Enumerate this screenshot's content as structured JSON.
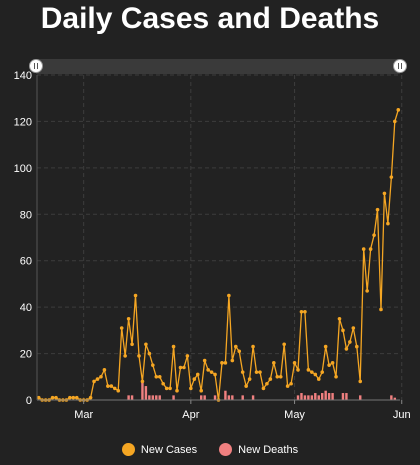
{
  "chart_data": {
    "type": "line",
    "title": "Daily Cases and Deaths",
    "x_tick_labels": [
      "Mar",
      "Apr",
      "May",
      "Jun"
    ],
    "x_tick_day_index": [
      13,
      44,
      74,
      105
    ],
    "y_ticks": [
      0,
      20,
      40,
      60,
      80,
      100,
      120,
      140
    ],
    "ylim": [
      0,
      140
    ],
    "grid": true,
    "legend_position": "bottom",
    "series": [
      {
        "name": "New Cases",
        "type": "line",
        "color": "#f5a623",
        "values": [
          1,
          0,
          0,
          0,
          1,
          1,
          0,
          0,
          0,
          1,
          1,
          1,
          0,
          0,
          0,
          1,
          8,
          9,
          10,
          13,
          6,
          6,
          5,
          4,
          31,
          19,
          35,
          24,
          45,
          19,
          8,
          24,
          20,
          15,
          10,
          10,
          7,
          5,
          5,
          23,
          4,
          14,
          14,
          19,
          5,
          9,
          11,
          4,
          17,
          13,
          12,
          11,
          0,
          16,
          16,
          45,
          17,
          23,
          21,
          12,
          6,
          9,
          23,
          12,
          12,
          5,
          7,
          9,
          16,
          10,
          10,
          24,
          6,
          7,
          16,
          13,
          38,
          38,
          13,
          12,
          11,
          9,
          12,
          23,
          15,
          16,
          10,
          35,
          30,
          22,
          25,
          31,
          23,
          8,
          65,
          47,
          65,
          71,
          82,
          39,
          89,
          76,
          96,
          120,
          125
        ]
      },
      {
        "name": "New Deaths",
        "type": "bar",
        "color": "#f08080",
        "values": [
          0,
          0,
          0,
          0,
          0,
          0,
          0,
          0,
          0,
          0,
          0,
          0,
          0,
          0,
          0,
          0,
          0,
          0,
          0,
          0,
          0,
          0,
          0,
          0,
          0,
          0,
          2,
          2,
          0,
          0,
          8,
          6,
          2,
          2,
          2,
          2,
          0,
          0,
          0,
          2,
          0,
          0,
          0,
          0,
          0,
          0,
          0,
          2,
          2,
          0,
          0,
          2,
          0,
          0,
          4,
          2,
          2,
          0,
          0,
          2,
          0,
          0,
          2,
          0,
          0,
          0,
          0,
          0,
          0,
          0,
          0,
          0,
          0,
          0,
          0,
          2,
          3,
          2,
          2,
          2,
          3,
          2,
          3,
          4,
          3,
          3,
          0,
          0,
          3,
          3,
          0,
          0,
          0,
          2,
          0,
          0,
          0,
          0,
          0,
          0,
          0,
          0,
          2,
          1,
          0
        ]
      }
    ]
  }
}
